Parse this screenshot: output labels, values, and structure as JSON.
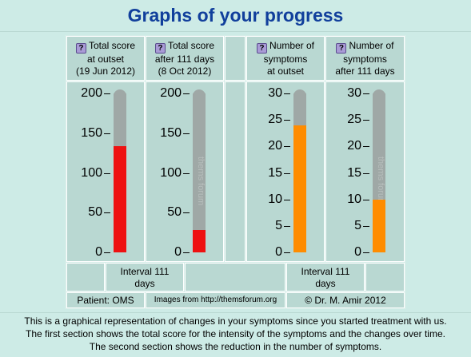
{
  "page": {
    "title": "Graphs of your progress"
  },
  "columns": [
    {
      "line1": "Total score",
      "line2": "at outset",
      "line3": "(19 Jun 2012)"
    },
    {
      "line1": "Total score",
      "line2": "after 111 days",
      "line3": "(8 Oct 2012)"
    },
    {
      "line1": "Number of",
      "line2": "symptoms",
      "line3": "at outset"
    },
    {
      "line1": "Number of",
      "line2": "symptoms",
      "line3": "after 111 days"
    }
  ],
  "help_icon": "question-mark-icon",
  "score_axis": {
    "ticks": [
      "200",
      "150",
      "100",
      "50",
      "0"
    ],
    "max": 200
  },
  "symptom_axis": {
    "ticks": [
      "30",
      "25",
      "20",
      "15",
      "10",
      "5",
      "0"
    ],
    "max": 30
  },
  "chart_data": {
    "type": "bar",
    "charts": [
      {
        "name": "Total score at outset",
        "value": 134,
        "max": 200,
        "color": "#ee1111"
      },
      {
        "name": "Total score after 111 days",
        "value": 28,
        "max": 200,
        "color": "#ee1111"
      },
      {
        "name": "Number of symptoms at outset",
        "value": 24,
        "max": 30,
        "color": "#ff8c00"
      },
      {
        "name": "Number of symptoms after 111 days",
        "value": 10,
        "max": 30,
        "color": "#ff8c00"
      }
    ],
    "watermark": "thems forum"
  },
  "intervals": {
    "score": {
      "line1": "Interval 111",
      "line2": "days"
    },
    "symptoms": {
      "line1": "Interval 111",
      "line2": "days"
    }
  },
  "footer": {
    "patient": "Patient: OMS",
    "images_from": "Images from http://themsforum.org",
    "copyright": "© Dr. M. Amir 2012"
  },
  "description": {
    "line1": "This is a graphical representation of changes in your symptoms since you started treatment with us.",
    "line2": "The first section shows the total score for the intensity of the symptoms and the changes over time.",
    "line3": "The second section shows the reduction in the number of symptoms."
  }
}
